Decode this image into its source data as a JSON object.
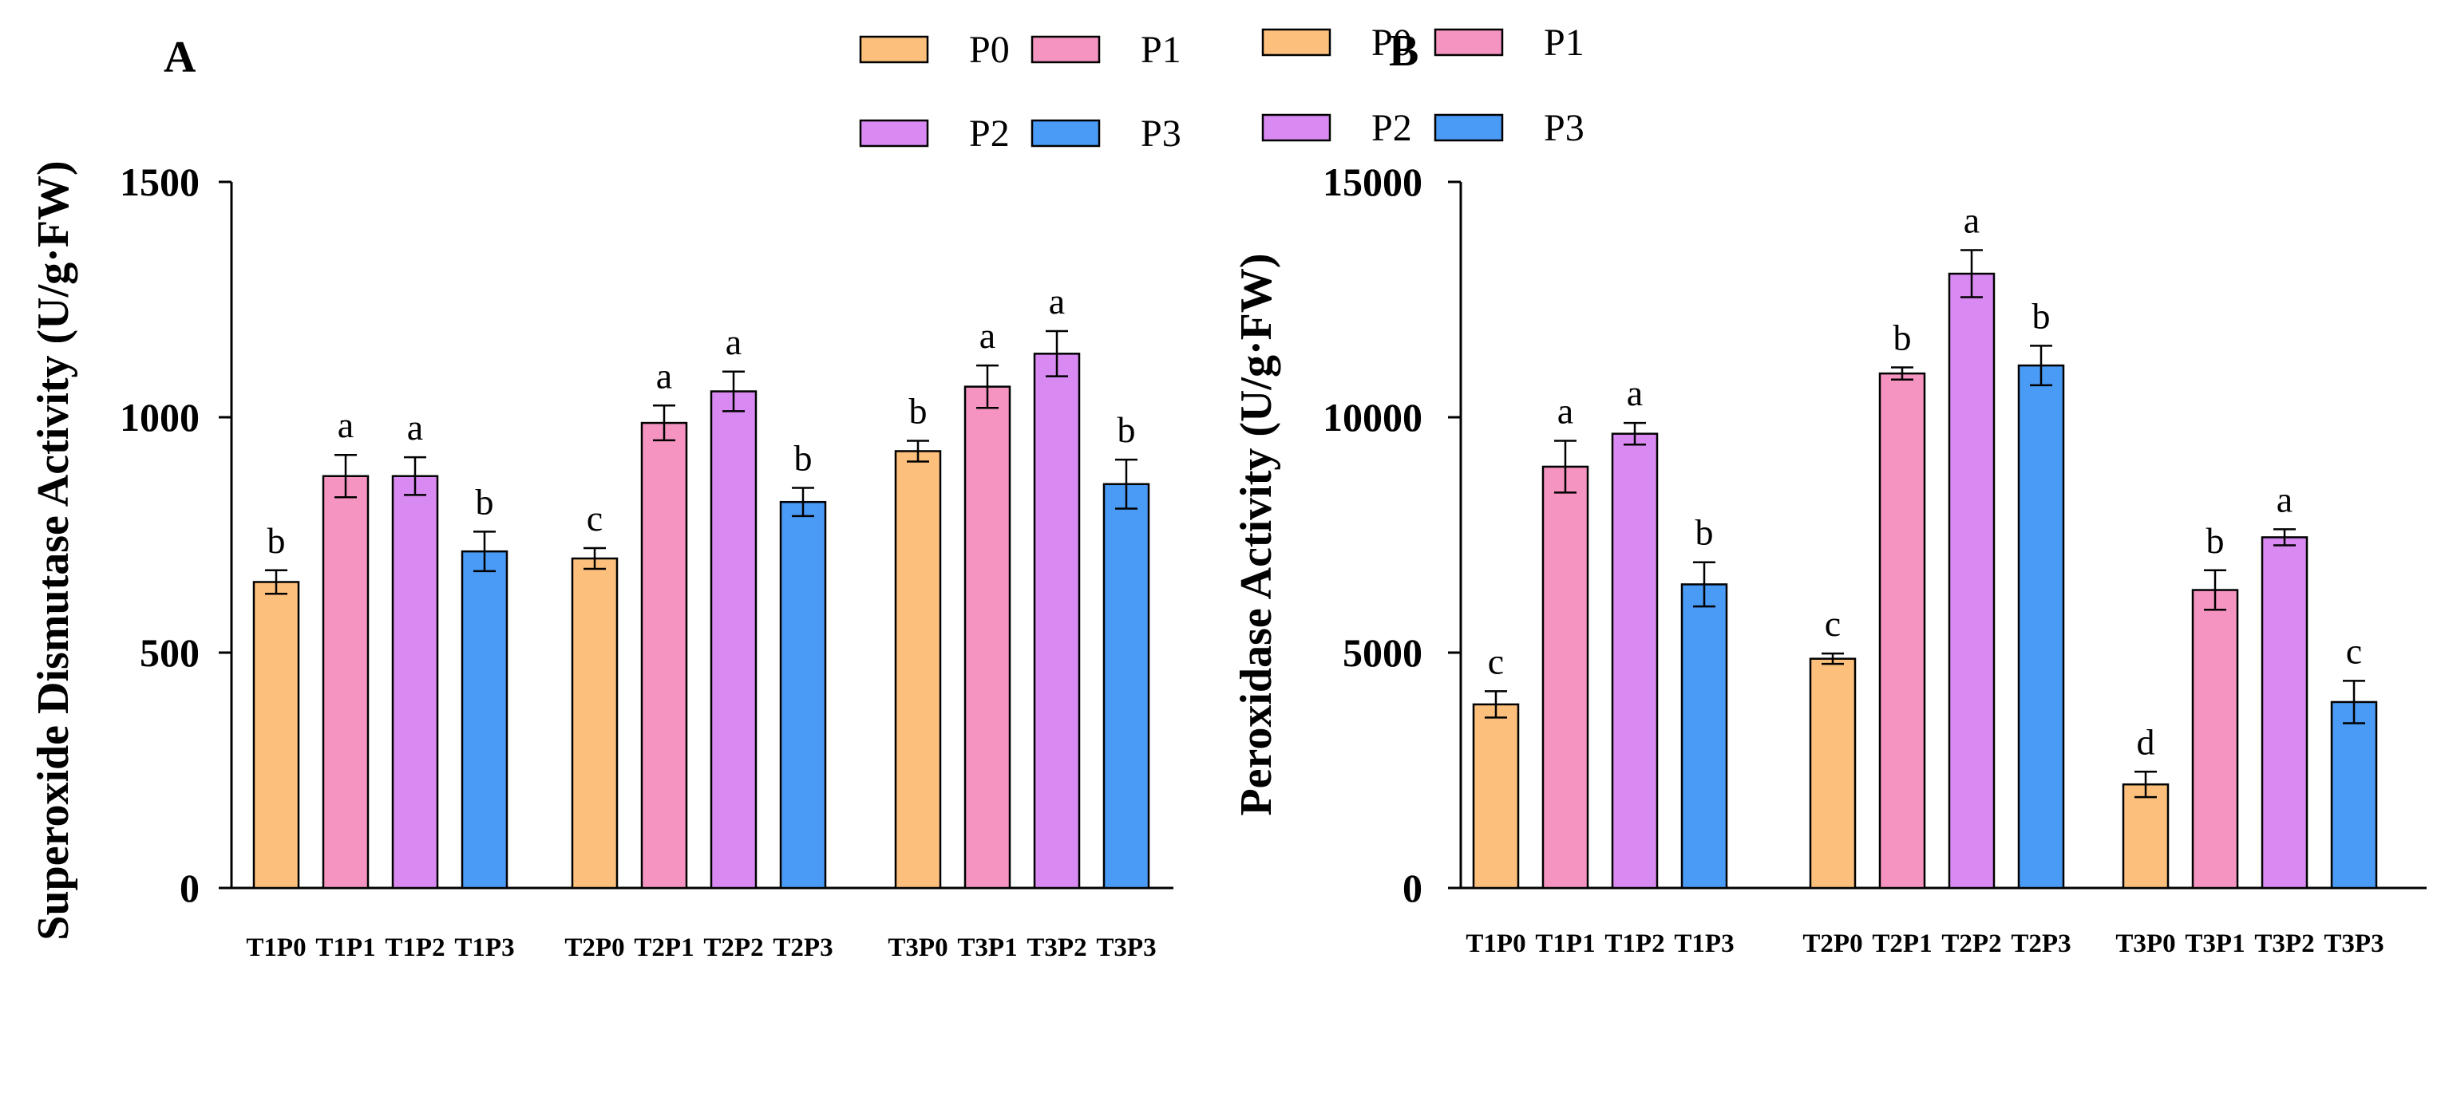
{
  "colors": {
    "P0": "#FDBF7C",
    "P1": "#F694C1",
    "P2": "#D98AF2",
    "P3": "#4A9BF5",
    "stroke": "#000000"
  },
  "chart_data": [
    {
      "type": "bar",
      "panel": "A",
      "ylabel": "Superoxide Dismutase Activity (U/g·FW)",
      "ylim": [
        0,
        1500
      ],
      "yticks": [
        "0",
        "500",
        "1000",
        "1500"
      ],
      "legend": [
        "P0",
        "P1",
        "P2",
        "P3"
      ],
      "groups": [
        {
          "bars": [
            {
              "label": "T1P0",
              "series": "P0",
              "value": 650,
              "error": 25,
              "sig": "b"
            },
            {
              "label": "T1P1",
              "series": "P1",
              "value": 875,
              "error": 45,
              "sig": "a"
            },
            {
              "label": "T1P2",
              "series": "P2",
              "value": 875,
              "error": 40,
              "sig": "a"
            },
            {
              "label": "T1P3",
              "series": "P3",
              "value": 715,
              "error": 42,
              "sig": "b"
            }
          ]
        },
        {
          "bars": [
            {
              "label": "T2P0",
              "series": "P0",
              "value": 700,
              "error": 22,
              "sig": "c"
            },
            {
              "label": "T2P1",
              "series": "P1",
              "value": 988,
              "error": 37,
              "sig": "a"
            },
            {
              "label": "T2P2",
              "series": "P2",
              "value": 1055,
              "error": 42,
              "sig": "a"
            },
            {
              "label": "T2P3",
              "series": "P3",
              "value": 820,
              "error": 30,
              "sig": "b"
            }
          ]
        },
        {
          "bars": [
            {
              "label": "T3P0",
              "series": "P0",
              "value": 928,
              "error": 22,
              "sig": "b"
            },
            {
              "label": "T3P1",
              "series": "P1",
              "value": 1065,
              "error": 45,
              "sig": "a"
            },
            {
              "label": "T3P2",
              "series": "P2",
              "value": 1135,
              "error": 48,
              "sig": "a"
            },
            {
              "label": "T3P3",
              "series": "P3",
              "value": 858,
              "error": 52,
              "sig": "b"
            }
          ]
        }
      ]
    },
    {
      "type": "bar",
      "panel": "B",
      "ylabel": "Peroxidase Activity (U/g·FW)",
      "ylim": [
        0,
        15000
      ],
      "yticks": [
        "0",
        "5000",
        "10000",
        "15000"
      ],
      "legend": [
        "P0",
        "P1",
        "P2",
        "P3"
      ],
      "groups": [
        {
          "bars": [
            {
              "label": "T1P0",
              "series": "P0",
              "value": 3900,
              "error": 280,
              "sig": "c"
            },
            {
              "label": "T1P1",
              "series": "P1",
              "value": 8950,
              "error": 550,
              "sig": "a"
            },
            {
              "label": "T1P2",
              "series": "P2",
              "value": 9650,
              "error": 230,
              "sig": "a"
            },
            {
              "label": "T1P3",
              "series": "P3",
              "value": 6450,
              "error": 470,
              "sig": "b"
            }
          ]
        },
        {
          "bars": [
            {
              "label": "T2P0",
              "series": "P0",
              "value": 4870,
              "error": 110,
              "sig": "c"
            },
            {
              "label": "T2P1",
              "series": "P1",
              "value": 10930,
              "error": 130,
              "sig": "b"
            },
            {
              "label": "T2P2",
              "series": "P2",
              "value": 13050,
              "error": 500,
              "sig": "a"
            },
            {
              "label": "T2P3",
              "series": "P3",
              "value": 11100,
              "error": 420,
              "sig": "b"
            }
          ]
        },
        {
          "bars": [
            {
              "label": "T3P0",
              "series": "P0",
              "value": 2200,
              "error": 270,
              "sig": "d"
            },
            {
              "label": "T3P1",
              "series": "P1",
              "value": 6330,
              "error": 420,
              "sig": "b"
            },
            {
              "label": "T3P2",
              "series": "P2",
              "value": 7450,
              "error": 170,
              "sig": "a"
            },
            {
              "label": "T3P3",
              "series": "P3",
              "value": 3950,
              "error": 450,
              "sig": "c"
            }
          ]
        }
      ]
    }
  ]
}
